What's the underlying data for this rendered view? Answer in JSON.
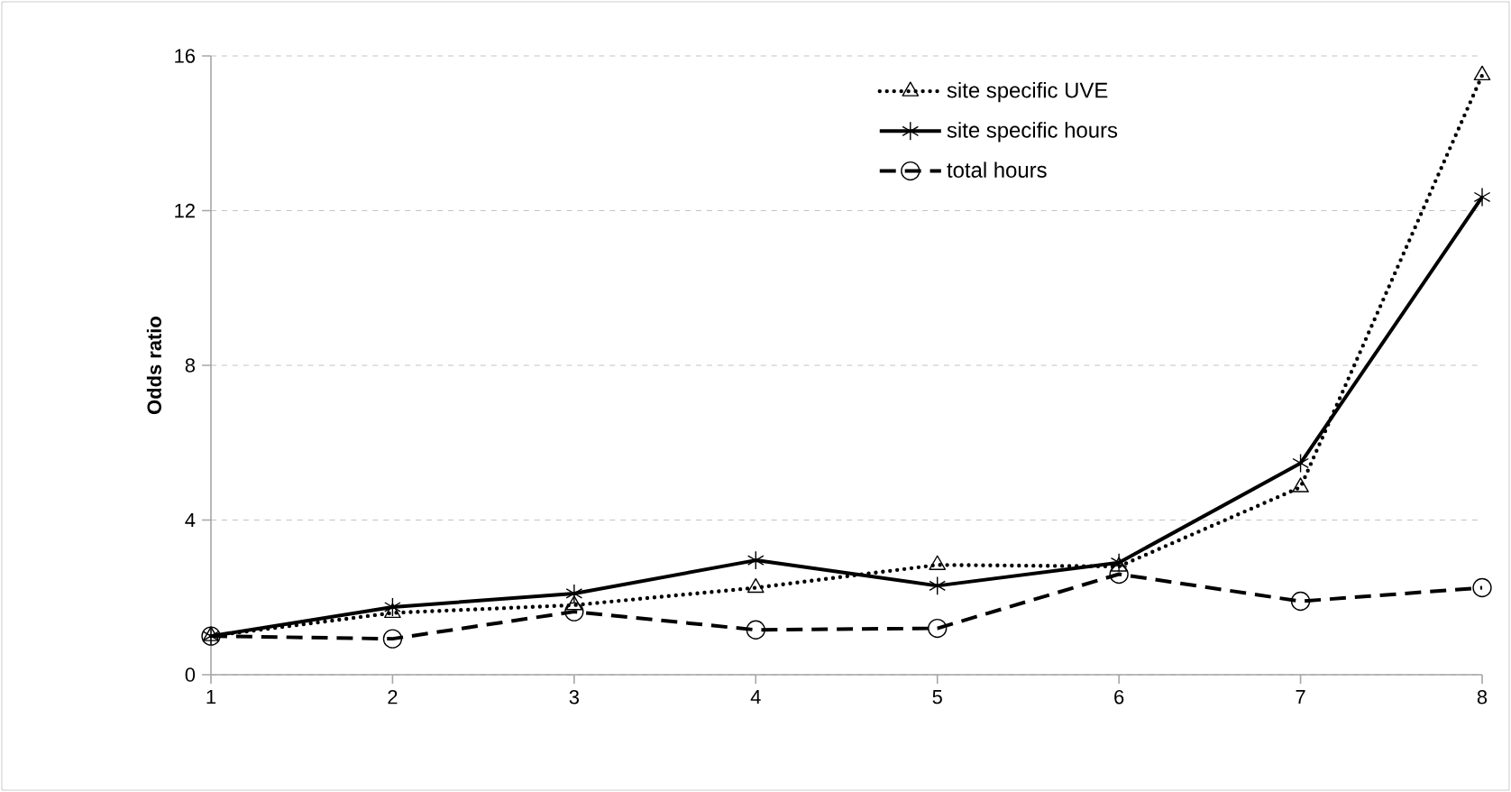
{
  "chart_data": {
    "type": "line",
    "ylabel": "Odds ratio",
    "x": [
      1,
      2,
      3,
      4,
      5,
      6,
      7,
      8
    ],
    "series": [
      {
        "name": "site specific UVE",
        "color": "#000000",
        "marker": "triangle",
        "line_style": "dotted",
        "values": [
          1.0,
          1.6,
          1.8,
          2.25,
          2.84,
          2.8,
          4.85,
          15.5
        ]
      },
      {
        "name": "site specific hours",
        "color": "#000000",
        "marker": "cross",
        "line_style": "solid",
        "values": [
          1.0,
          1.75,
          2.1,
          2.96,
          2.3,
          2.9,
          5.47,
          12.35
        ]
      },
      {
        "name": "total hours",
        "color": "#000000",
        "marker": "circle",
        "line_style": "dashed",
        "values": [
          1.0,
          0.93,
          1.63,
          1.16,
          1.2,
          2.6,
          1.9,
          2.25
        ]
      }
    ],
    "xlim": [
      1,
      8
    ],
    "xticks": [
      1,
      2,
      3,
      4,
      5,
      6,
      7,
      8
    ],
    "ylim": [
      0,
      16
    ],
    "yticks": [
      0,
      4,
      8,
      12,
      16
    ],
    "grid": "y",
    "legend": "top right"
  }
}
